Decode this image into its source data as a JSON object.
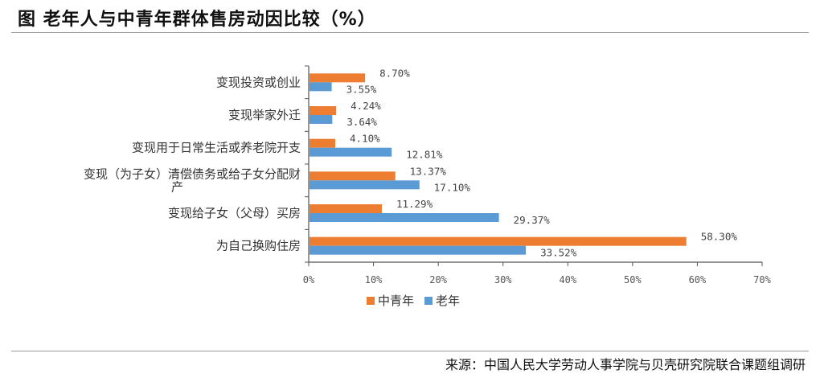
{
  "header": {
    "title": "图  老年人与中青年群体售房动因比较（%）",
    "source": "来源：中国人民大学劳动人事学院与贝壳研究院联合课题组调研"
  },
  "colors": {
    "youth": "#ED7D31",
    "elderly": "#5B9BD5"
  },
  "chart_data": {
    "type": "bar",
    "orientation": "horizontal",
    "categories": [
      [
        "变现投资或创业"
      ],
      [
        "变现举家外迁"
      ],
      [
        "变现用于日常生活或养老院开支"
      ],
      [
        "变现（为子女）清偿债务或给子女分配财",
        "产"
      ],
      [
        "变现给子女（父母）买房"
      ],
      [
        "为自己换购住房"
      ]
    ],
    "series": [
      {
        "name": "中青年",
        "values": [
          8.7,
          4.24,
          4.1,
          13.37,
          11.29,
          58.3
        ],
        "labels": [
          "8.70%",
          "4.24%",
          "4.10%",
          "13.37%",
          "11.29%",
          "58.30%"
        ]
      },
      {
        "name": "老年",
        "values": [
          3.55,
          3.64,
          12.81,
          17.1,
          29.37,
          33.52
        ],
        "labels": [
          "3.55%",
          "3.64%",
          "12.81%",
          "17.10%",
          "29.37%",
          "33.52%"
        ]
      }
    ],
    "xlim": [
      0,
      70
    ],
    "xticks": [
      "0%",
      "10%",
      "20%",
      "30%",
      "40%",
      "50%",
      "60%",
      "70%"
    ],
    "legend_position": "bottom-left"
  }
}
